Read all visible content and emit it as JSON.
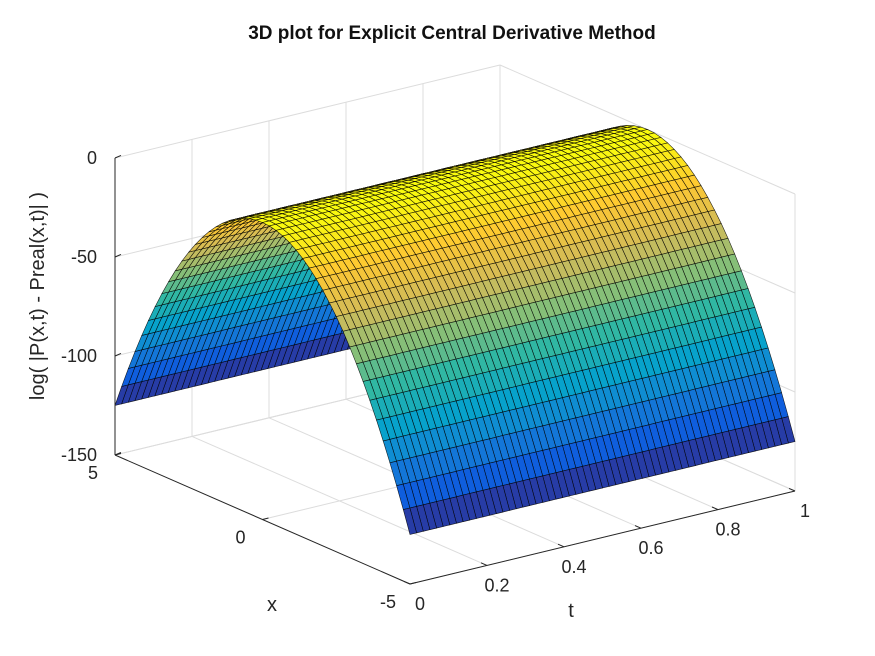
{
  "chart_data": {
    "type": "surface",
    "title": "3D plot for Explicit Central Derivative Method",
    "xlabel": "t",
    "ylabel": "x",
    "zlabel": "log( |P(x,t) - Preal(x,t)| )",
    "t_range": [
      0,
      1
    ],
    "x_range": [
      -5,
      5
    ],
    "z_range": [
      -150,
      0
    ],
    "t_ticks": [
      "0",
      "0.2",
      "0.4",
      "0.6",
      "0.8",
      "1"
    ],
    "x_ticks": [
      "-5",
      "0",
      "5"
    ],
    "z_ticks": [
      "-150",
      "-100",
      "-50",
      "0"
    ],
    "surface_model": "approximately z = -5*x^2 for all t (error peaks near 0 at x = 0, falls to about -125 at x = ±5)",
    "colormap": "parula",
    "colormap_stops": [
      "#352a87",
      "#0f5cdd",
      "#1481d6",
      "#06a4ca",
      "#2eb7a4",
      "#87bf77",
      "#d1bb59",
      "#fec832",
      "#f9fb0e"
    ],
    "grid": true,
    "box": false
  }
}
